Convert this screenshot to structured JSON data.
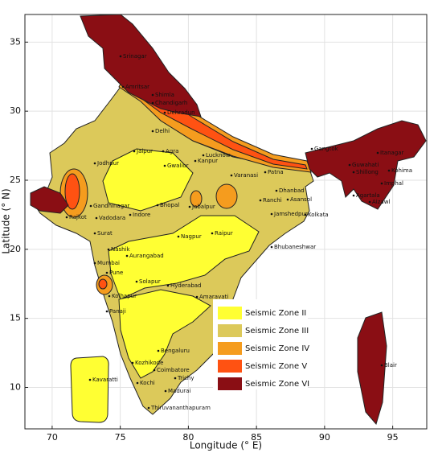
{
  "chart_data": {
    "type": "map",
    "xlabel": "Longitude (° E)",
    "ylabel": "Latitude (° N)",
    "xlim": [
      68,
      97.5
    ],
    "ylim": [
      7,
      37
    ],
    "xticks": [
      70,
      75,
      80,
      85,
      90,
      95
    ],
    "yticks": [
      10,
      15,
      20,
      25,
      30,
      35
    ],
    "grid": true,
    "zones": [
      {
        "name": "Seismic Zone II",
        "color": "#ffff33"
      },
      {
        "name": "Seismic Zone III",
        "color": "#dcc95a"
      },
      {
        "name": "Seismic Zone IV",
        "color": "#f59c1e"
      },
      {
        "name": "Seismic Zone V",
        "color": "#ff5212"
      },
      {
        "name": "Seismic Zone VI",
        "color": "#8a0e14"
      }
    ],
    "legend_position": "lower center",
    "cities": [
      "Srinagar",
      "Amritsar",
      "Shimla",
      "Chandigarh",
      "Dehradun",
      "Delhi",
      "Jaipur",
      "Agra",
      "Lucknow",
      "Kanpur",
      "Jodhpur",
      "Gwalior",
      "Varanasi",
      "Patna",
      "Gangtok",
      "Itanagar",
      "Guwahati",
      "Shillong",
      "Kohima",
      "Imphal",
      "Agartala",
      "Aizawl",
      "Ranchi",
      "Dhanbad",
      "Asansol",
      "Jamshedpur",
      "Kolkata",
      "Gandhinagar",
      "Bhopal",
      "Jabalpur",
      "Indore",
      "Rajkot",
      "Vadodara",
      "Surat",
      "Nagpur",
      "Raipur",
      "Bhubaneshwar",
      "Nashik",
      "Aurangabad",
      "Mumbai",
      "Pune",
      "Solapur",
      "Hyderabad",
      "Kolhapur",
      "Amaravati",
      "Panaji",
      "Chennai",
      "Bengaluru",
      "Kozhikode",
      "Coimbatore",
      "Kavaratti",
      "Kochi",
      "Trichy",
      "Madurai",
      "Thiruvananthapuram",
      "Blair"
    ]
  }
}
